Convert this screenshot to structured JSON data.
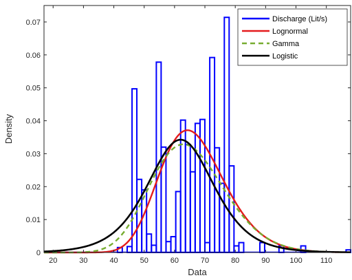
{
  "chart_data": {
    "type": "histogram",
    "xlabel": "Data",
    "ylabel": "Density",
    "xlim": [
      17,
      118
    ],
    "ylim": [
      0,
      0.075
    ],
    "xticks": [
      20,
      30,
      40,
      50,
      60,
      70,
      80,
      90,
      100,
      110
    ],
    "yticks": [
      0,
      0.01,
      0.02,
      0.03,
      0.04,
      0.05,
      0.06,
      0.07
    ],
    "xtick_labels": [
      "20",
      "30",
      "40",
      "50",
      "60",
      "70",
      "80",
      "90",
      "100",
      "110"
    ],
    "ytick_labels": [
      "0",
      "0.01",
      "0.02",
      "0.03",
      "0.04",
      "0.05",
      "0.06",
      "0.07"
    ],
    "grid": false,
    "legend_position": "top-right",
    "histogram": {
      "name": "Discharge (Lit/s)",
      "color": "#0000ff",
      "bin_width": 1.58,
      "bins": [
        {
          "x0": 41.2,
          "height": 0.0015
        },
        {
          "x0": 44.4,
          "height": 0.0018
        },
        {
          "x0": 46.0,
          "height": 0.0497
        },
        {
          "x0": 47.6,
          "height": 0.0222
        },
        {
          "x0": 49.2,
          "height": 0.019
        },
        {
          "x0": 50.8,
          "height": 0.0056
        },
        {
          "x0": 52.4,
          "height": 0.0022
        },
        {
          "x0": 54.0,
          "height": 0.0578
        },
        {
          "x0": 55.6,
          "height": 0.032
        },
        {
          "x0": 57.2,
          "height": 0.0033
        },
        {
          "x0": 58.8,
          "height": 0.0048
        },
        {
          "x0": 60.4,
          "height": 0.0185
        },
        {
          "x0": 62.0,
          "height": 0.0402
        },
        {
          "x0": 63.6,
          "height": 0.0328
        },
        {
          "x0": 65.2,
          "height": 0.0245
        },
        {
          "x0": 66.8,
          "height": 0.0392
        },
        {
          "x0": 68.4,
          "height": 0.0404
        },
        {
          "x0": 70.0,
          "height": 0.003
        },
        {
          "x0": 71.6,
          "height": 0.0592
        },
        {
          "x0": 73.2,
          "height": 0.0318
        },
        {
          "x0": 74.8,
          "height": 0.021
        },
        {
          "x0": 76.4,
          "height": 0.0714
        },
        {
          "x0": 78.0,
          "height": 0.0263
        },
        {
          "x0": 79.6,
          "height": 0.002
        },
        {
          "x0": 81.2,
          "height": 0.003
        },
        {
          "x0": 88.1,
          "height": 0.003
        },
        {
          "x0": 94.4,
          "height": 0.002
        },
        {
          "x0": 101.6,
          "height": 0.002
        },
        {
          "x0": 116.5,
          "height": 0.0008
        }
      ]
    },
    "series": [
      {
        "name": "Lognormal",
        "color": "#e41a1c",
        "dash": "solid",
        "dist": "lognormal",
        "mu": 4.19,
        "sigma": 0.165
      },
      {
        "name": "Gamma",
        "color": "#77ac30",
        "dash": "dashed",
        "dist": "gamma",
        "shape": 28,
        "scale": 2.33
      },
      {
        "name": "Logistic",
        "color": "#000000",
        "dash": "solid",
        "dist": "logistic",
        "loc": 62,
        "scale": 7.3
      }
    ]
  }
}
